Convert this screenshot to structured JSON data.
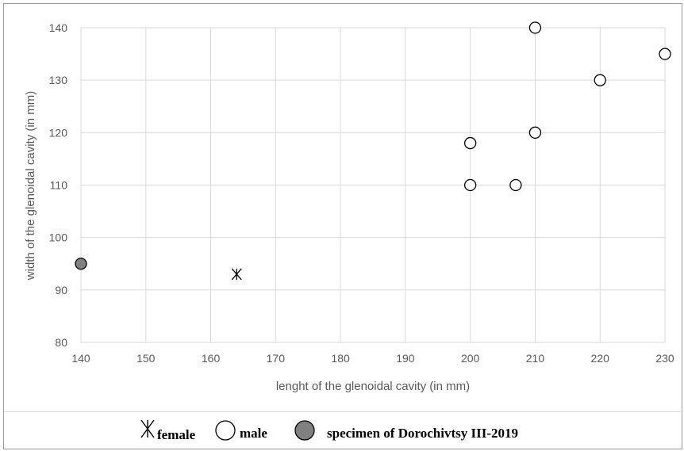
{
  "chart_data": {
    "type": "scatter",
    "xlabel": "lenght of the glenoidal cavity (in mm)",
    "ylabel": "width of the glenoidal cavity (in mm)",
    "xlim": [
      140,
      230
    ],
    "ylim": [
      80,
      140
    ],
    "x_ticks": [
      140,
      150,
      160,
      170,
      180,
      190,
      200,
      210,
      220,
      230
    ],
    "y_ticks": [
      80,
      90,
      100,
      110,
      120,
      130,
      140
    ],
    "grid": true,
    "legend_position": "bottom",
    "series": [
      {
        "name": "female",
        "marker": "asterisk",
        "color": "#000000",
        "points": [
          {
            "x": 164,
            "y": 93
          }
        ]
      },
      {
        "name": "male",
        "marker": "open-circle",
        "color": "#000000",
        "points": [
          {
            "x": 210,
            "y": 140
          },
          {
            "x": 230,
            "y": 135
          },
          {
            "x": 220,
            "y": 130
          },
          {
            "x": 210,
            "y": 120
          },
          {
            "x": 200,
            "y": 118
          },
          {
            "x": 200,
            "y": 110
          },
          {
            "x": 207,
            "y": 110
          }
        ]
      },
      {
        "name": "specimen of Dorochivtsy III-2019",
        "marker": "filled-circle",
        "color": "#808080",
        "points": [
          {
            "x": 140,
            "y": 95
          }
        ]
      }
    ]
  }
}
